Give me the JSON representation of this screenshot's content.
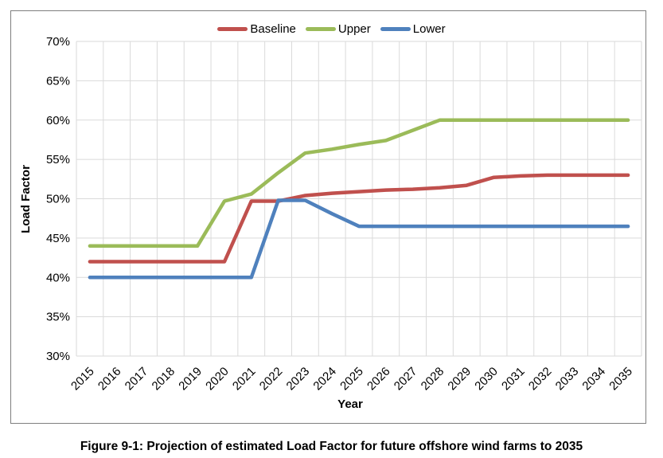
{
  "figure": {
    "caption": "Figure 9-1: Projection of estimated Load Factor for future offshore wind farms to 2035"
  },
  "chart_data": {
    "type": "line",
    "title": "",
    "xlabel": "Year",
    "ylabel": "Load Factor",
    "ylim": [
      30,
      70
    ],
    "y_tick_step": 5,
    "y_tick_labels": [
      "30%",
      "35%",
      "40%",
      "45%",
      "50%",
      "55%",
      "60%",
      "65%",
      "70%"
    ],
    "grid": true,
    "legend_position": "top-center",
    "gridline_color": "#DADADA",
    "categories": [
      "2015",
      "2016",
      "2017",
      "2018",
      "2019",
      "2020",
      "2021",
      "2022",
      "2023",
      "2024",
      "2025",
      "2026",
      "2027",
      "2028",
      "2029",
      "2030",
      "2031",
      "2032",
      "2033",
      "2034",
      "2035"
    ],
    "series": [
      {
        "name": "Baseline",
        "color": "#C0504D",
        "values": [
          42,
          42,
          42,
          42,
          42,
          42,
          49.7,
          49.7,
          50.4,
          50.7,
          50.9,
          51.1,
          51.2,
          51.4,
          51.7,
          52.7,
          52.9,
          53,
          53,
          53,
          53
        ]
      },
      {
        "name": "Upper",
        "color": "#9BBB59",
        "values": [
          44,
          44,
          44,
          44,
          44,
          49.7,
          50.6,
          53.3,
          55.8,
          56.3,
          56.9,
          57.4,
          58.7,
          60,
          60,
          60,
          60,
          60,
          60,
          60,
          60
        ]
      },
      {
        "name": "Lower",
        "color": "#4F81BD",
        "values": [
          40,
          40,
          40,
          40,
          40,
          40,
          40,
          49.8,
          49.8,
          48.1,
          46.5,
          46.5,
          46.5,
          46.5,
          46.5,
          46.5,
          46.5,
          46.5,
          46.5,
          46.5,
          46.5
        ]
      }
    ]
  }
}
